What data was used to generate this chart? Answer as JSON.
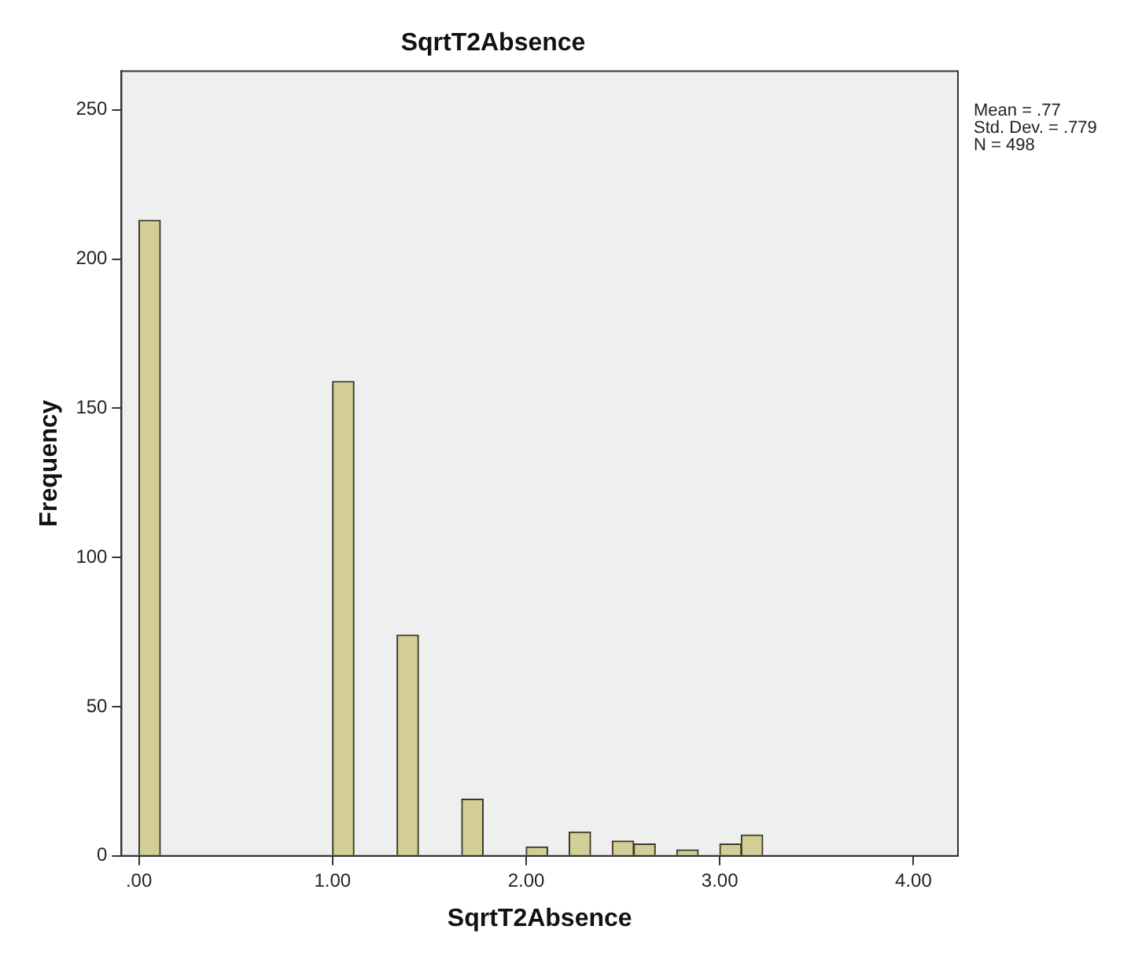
{
  "chart_data": {
    "type": "histogram",
    "title": "SqrtT2Absence",
    "xlabel": "SqrtT2Absence",
    "ylabel": "Frequency",
    "annotations": [
      "Mean = .77",
      "Std. Dev. = .779",
      "N = 498"
    ],
    "bins": [
      0,
      0.111,
      0.222,
      0.333,
      0.444,
      0.556,
      0.667,
      0.778,
      0.889,
      1,
      1.111,
      1.222,
      1.333,
      1.444,
      1.556,
      1.667,
      1.778,
      1.889,
      2,
      2.111,
      2.222,
      2.333,
      2.444,
      2.556,
      2.667,
      2.778,
      2.889,
      3,
      3.111,
      3.222
    ],
    "values": [
      213,
      0,
      0,
      0,
      0,
      0,
      0,
      0,
      0,
      159,
      0,
      0,
      74,
      0,
      0,
      19,
      0,
      0,
      3,
      0,
      8,
      0,
      5,
      4,
      0,
      2,
      0,
      4,
      7
    ],
    "color": "#d3ce96",
    "xlim": [
      -0.09,
      4.23
    ],
    "xticks": [
      {
        "value": 0,
        "label": ".00"
      },
      {
        "value": 1,
        "label": "1.00"
      },
      {
        "value": 2,
        "label": "2.00"
      },
      {
        "value": 3,
        "label": "3.00"
      },
      {
        "value": 4,
        "label": "4.00"
      }
    ],
    "ylim": [
      0,
      263
    ],
    "yticks": [
      0,
      50,
      100,
      150,
      200,
      250
    ],
    "grid": false,
    "legend": false
  }
}
